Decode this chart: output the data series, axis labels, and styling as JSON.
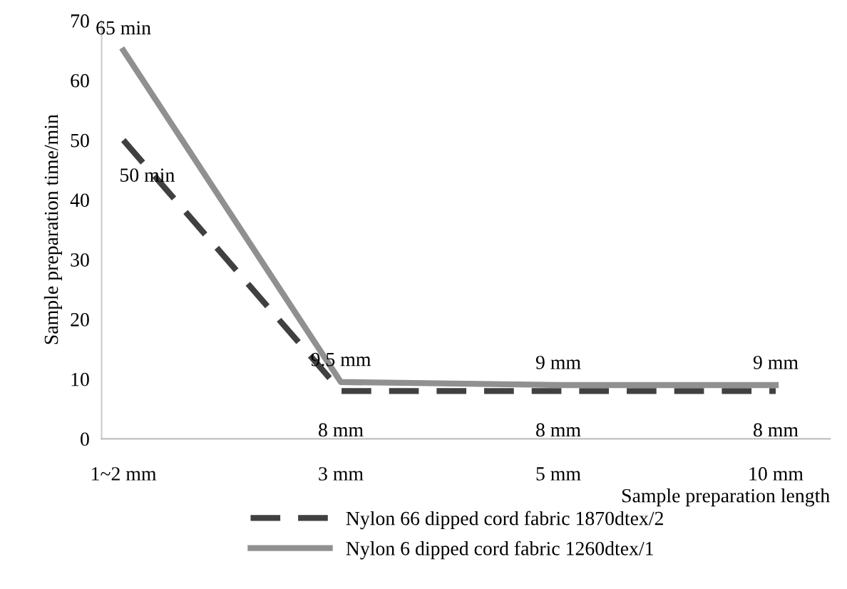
{
  "chart_data": {
    "type": "line",
    "ylabel": "Sample preparation time/min",
    "xlabel": "Sample preparation length",
    "categories": [
      "1~2 mm",
      "3 mm",
      "5 mm",
      "10 mm"
    ],
    "series": [
      {
        "name": "Nylon 66 dipped cord fabric 1870dtex/2",
        "color": "#404040",
        "line_style": "dashed",
        "values": [
          50,
          8,
          8,
          8
        ],
        "value_labels": [
          "50 min",
          "8 mm",
          "8 mm",
          "8 mm"
        ]
      },
      {
        "name": "Nylon 6 dipped cord fabric 1260dtex/1",
        "color": "#909090",
        "line_style": "solid",
        "values": [
          65,
          9.5,
          9,
          9
        ],
        "value_labels": [
          "65 min",
          "9.5 mm",
          "9 mm",
          "9 mm"
        ]
      }
    ],
    "ylim": [
      0,
      70
    ],
    "yticks": [
      0,
      10,
      20,
      30,
      40,
      50,
      60,
      70
    ],
    "grid": false,
    "legend": "bottom",
    "marker": "none"
  }
}
